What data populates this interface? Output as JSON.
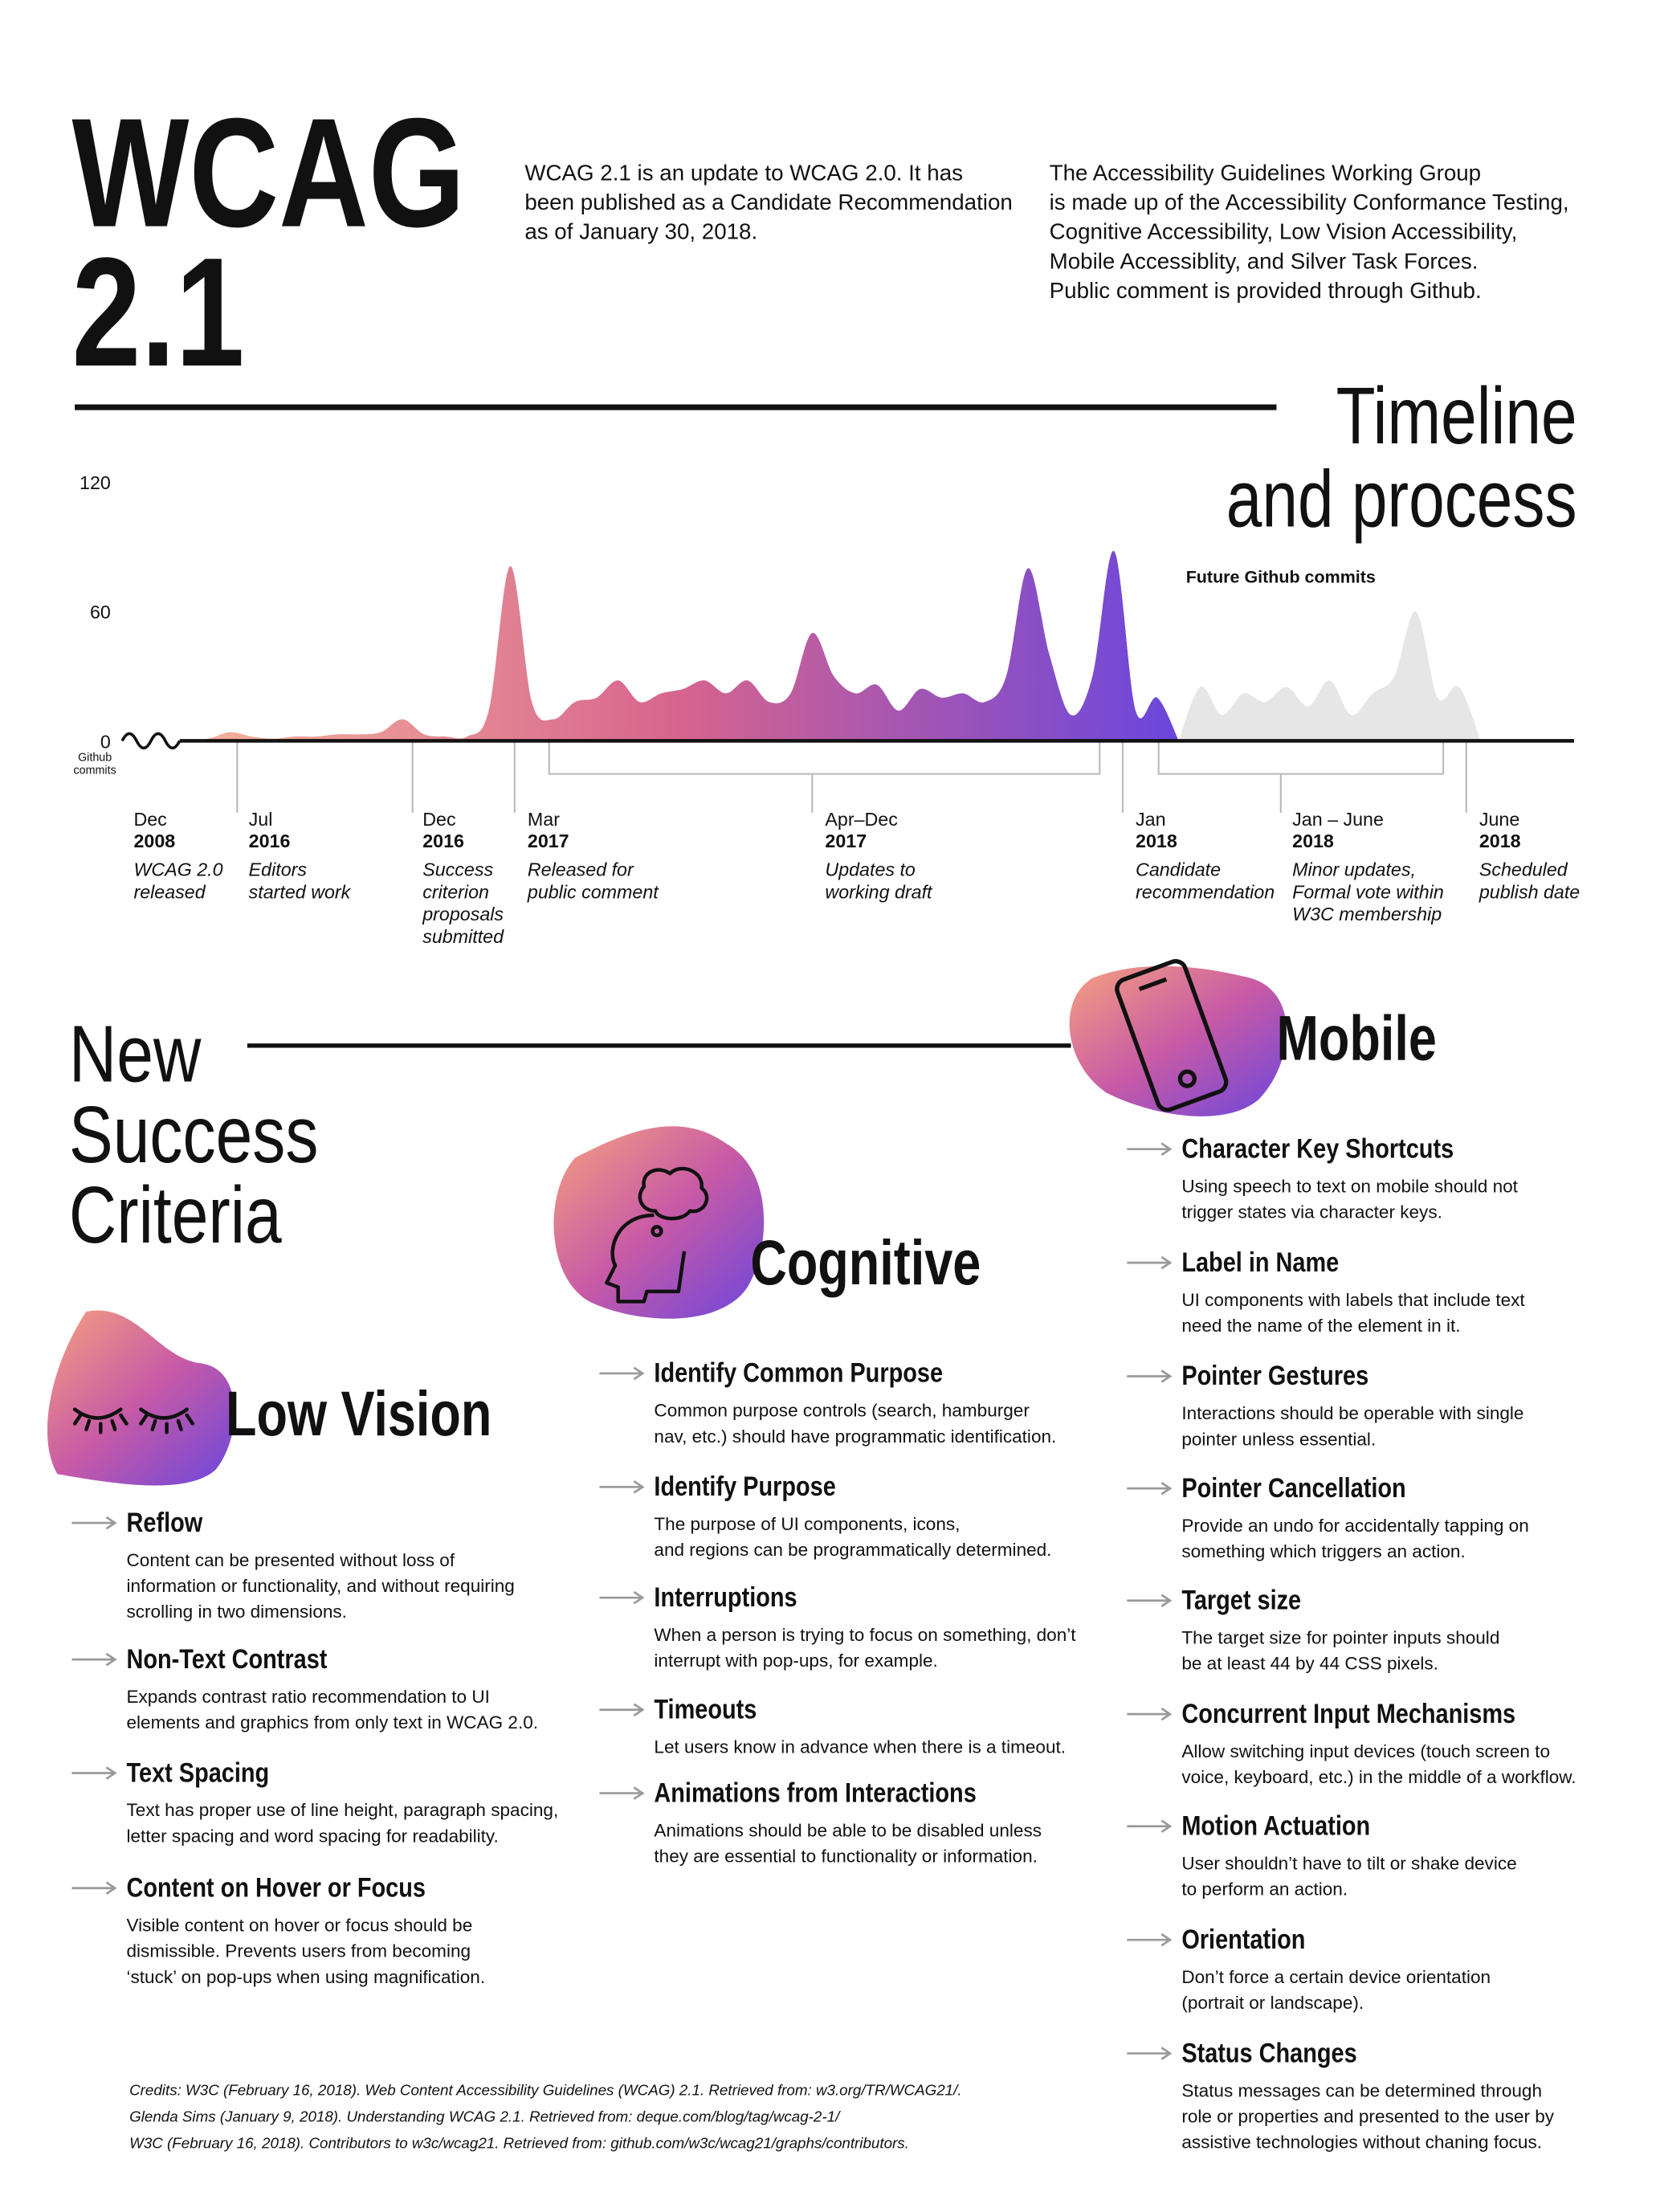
{
  "header": {
    "title": [
      "WCAG",
      "2.1"
    ],
    "intro": [
      "WCAG 2.1 is an update to WCAG 2.0. It has",
      "been published as a Candidate Recommendation",
      "as of January 30, 2018."
    ],
    "about": [
      "The Accessibility Guidelines Working Group",
      "is made up of the Accessibility Conformance Testing,",
      "Cognitive Accessibility, Low Vision Accessibility,",
      "Mobile Accessiblity, and Silver Task Forces.",
      "Public comment is provided through Github."
    ]
  },
  "timeline": {
    "heading": [
      "Timeline",
      "and process"
    ],
    "milestones": [
      {
        "month": "Dec",
        "year": "2008",
        "text": [
          "WCAG 2.0",
          "released"
        ]
      },
      {
        "month": "Jul",
        "year": "2016",
        "text": [
          "Editors",
          "started work"
        ]
      },
      {
        "month": "Dec",
        "year": "2016",
        "text": [
          "Success",
          "criterion",
          "proposals",
          "submitted"
        ]
      },
      {
        "month": "Mar",
        "year": "2017",
        "text": [
          "Released for",
          "public comment"
        ]
      },
      {
        "month": "Apr–Dec",
        "year": "2017",
        "text": [
          "Updates to",
          "working draft"
        ]
      },
      {
        "month": "Jan",
        "year": "2018",
        "text": [
          "Candidate",
          "recommendation"
        ]
      },
      {
        "month": "Jan – June",
        "year": "2018",
        "text": [
          "Minor updates,",
          "Formal vote within",
          "W3C membership"
        ]
      },
      {
        "month": "June",
        "year": "2018",
        "text": [
          "Scheduled",
          "publish date"
        ]
      }
    ]
  },
  "chart_data": {
    "type": "area",
    "y_label": [
      "Github",
      "commits"
    ],
    "ylim": [
      0,
      120
    ],
    "yticks": [
      0,
      60,
      120
    ],
    "series": [
      {
        "color": "#b45ab8",
        "gradient": [
          "#f6b39a",
          "#d6648e",
          "#6a46dd"
        ],
        "values": [
          0,
          1,
          4,
          2,
          1,
          2,
          2,
          3,
          3,
          4,
          10,
          3,
          2,
          2,
          14,
          81,
          18,
          10,
          18,
          20,
          28,
          18,
          22,
          24,
          28,
          22,
          28,
          18,
          22,
          50,
          30,
          22,
          26,
          14,
          24,
          20,
          22,
          18,
          30,
          80,
          40,
          12,
          30,
          88,
          14,
          20,
          0
        ]
      },
      {
        "name": "Future Github commits",
        "color": "#e6e6e6",
        "values": [
          0,
          25,
          12,
          22,
          18,
          25,
          16,
          28,
          12,
          22,
          30,
          60,
          20,
          25,
          0
        ]
      }
    ]
  },
  "criteria": {
    "heading": [
      "New",
      "Success",
      "Criteria"
    ],
    "sections": [
      {
        "title": "Low Vision",
        "items": [
          {
            "title": "Reflow",
            "lines": [
              "Content can be presented without loss of",
              "information or functionality, and without requiring",
              "scrolling in two dimensions."
            ]
          },
          {
            "title": "Non-Text Contrast",
            "lines": [
              "Expands contrast ratio recommendation to UI",
              "elements and graphics from only text in WCAG 2.0."
            ]
          },
          {
            "title": "Text Spacing",
            "lines": [
              "Text has proper use of line height, paragraph spacing,",
              "letter spacing and word spacing for readability."
            ]
          },
          {
            "title": "Content on Hover or Focus",
            "lines": [
              "Visible content on hover or focus should be",
              "dismissible. Prevents users from becoming",
              "‘stuck’ on pop-ups when using magnification."
            ]
          }
        ]
      },
      {
        "title": "Cognitive",
        "items": [
          {
            "title": "Identify Common Purpose",
            "lines": [
              "Common purpose controls (search, hamburger",
              "nav, etc.) should have programmatic identification."
            ]
          },
          {
            "title": "Identify Purpose",
            "lines": [
              "The purpose of UI components, icons,",
              "and regions can be programmatically determined."
            ]
          },
          {
            "title": "Interruptions",
            "lines": [
              "When a person is trying to focus on something, don’t",
              "interrupt with pop-ups, for example."
            ]
          },
          {
            "title": "Timeouts",
            "lines": [
              "Let users know in advance when there is a timeout."
            ]
          },
          {
            "title": "Animations from Interactions",
            "lines": [
              "Animations should be able to be disabled unless",
              "they are essential to functionality or information."
            ]
          }
        ]
      },
      {
        "title": "Mobile",
        "items": [
          {
            "title": "Character Key Shortcuts",
            "lines": [
              "Using speech to text on mobile should not",
              "trigger states via character keys."
            ]
          },
          {
            "title": "Label in Name",
            "lines": [
              "UI components with labels that include text",
              "need the name of the element in it."
            ]
          },
          {
            "title": "Pointer Gestures",
            "lines": [
              "Interactions should be operable with single",
              "pointer unless essential."
            ]
          },
          {
            "title": "Pointer Cancellation",
            "lines": [
              "Provide an undo for accidentally tapping on",
              "something which triggers an action."
            ]
          },
          {
            "title": "Target size",
            "lines": [
              "The target size for pointer inputs should",
              "be at least 44 by 44 CSS pixels."
            ]
          },
          {
            "title": "Concurrent Input Mechanisms",
            "lines": [
              "Allow switching input devices (touch screen to",
              "voice, keyboard, etc.) in the middle of a workflow."
            ]
          },
          {
            "title": "Motion Actuation",
            "lines": [
              "User shouldn’t have to tilt or shake device",
              "to perform an action."
            ]
          },
          {
            "title": "Orientation",
            "lines": [
              "Don’t force a certain device orientation",
              "(portrait or landscape)."
            ]
          },
          {
            "title": "Status Changes",
            "lines": [
              "Status messages can be determined through",
              "role or properties and presented to the user by",
              "assistive technologies without chaning focus."
            ]
          }
        ]
      }
    ]
  },
  "credits": [
    "Credits: W3C (February 16, 2018). Web Content Accessibility Guidelines (WCAG) 2.1. Retrieved from: w3.org/TR/WCAG21/.",
    "Glenda Sims (January 9, 2018). Understanding WCAG 2.1. Retrieved from: deque.com/blog/tag/wcag-2-1/",
    "W3C (February 16, 2018). Contributors to w3c/wcag21. Retrieved from: github.com/w3c/wcag21/graphs/contributors."
  ]
}
